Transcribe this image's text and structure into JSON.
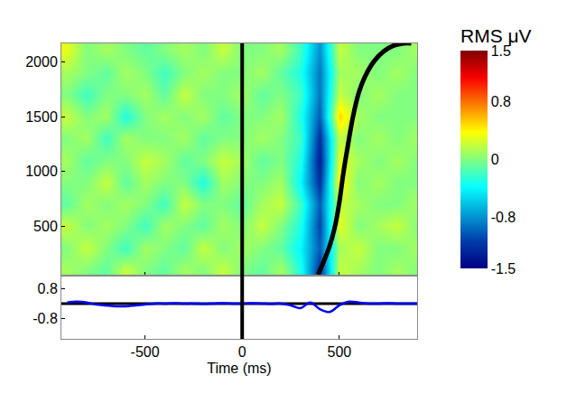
{
  "chart_data": {
    "type": "heatmap",
    "x_title": "Time (ms)",
    "xlim": [
      -930,
      900
    ],
    "xticks": [
      -500,
      0,
      500
    ],
    "ylim": [
      50,
      2170
    ],
    "yticks": [
      500,
      1000,
      1500,
      2000
    ],
    "x": [
      -900,
      -800,
      -700,
      -600,
      -500,
      -400,
      -300,
      -200,
      -100,
      0,
      100,
      200,
      300,
      400,
      500,
      600,
      700,
      800,
      900
    ],
    "y": [
      100,
      300,
      500,
      700,
      900,
      1100,
      1300,
      1500,
      1700,
      1900,
      2100
    ],
    "z": [
      [
        0.1,
        0,
        -0.1,
        0.2,
        0,
        -0.1,
        0.1,
        0,
        0.2,
        0,
        -0.1,
        0.1,
        -0.3,
        -1.2,
        0.2,
        0.1,
        0,
        0.1,
        0
      ],
      [
        0,
        0.2,
        0,
        -0.2,
        0.1,
        0,
        -0.1,
        0.2,
        0,
        0.1,
        0,
        -0.1,
        -0.4,
        -1.0,
        0.1,
        0.2,
        0,
        0,
        0.1
      ],
      [
        0.2,
        0,
        0.1,
        0,
        -0.2,
        0.1,
        0,
        -0.1,
        0.1,
        0,
        0.2,
        0,
        -0.3,
        -1.1,
        0.3,
        0,
        0.1,
        0.2,
        0
      ],
      [
        -0.1,
        0.1,
        0,
        0.1,
        0,
        -0.2,
        0.2,
        0,
        0,
        -0.1,
        0.1,
        0.2,
        -0.2,
        -1.0,
        0.2,
        0.1,
        0,
        0,
        0.1
      ],
      [
        0,
        0,
        0.2,
        -0.1,
        0.1,
        0,
        0,
        -0.3,
        0.1,
        0,
        0,
        0.1,
        -0.4,
        -1.2,
        0.4,
        0,
        0.1,
        0,
        0
      ],
      [
        0.1,
        -0.1,
        0,
        0,
        0.2,
        0.1,
        -0.1,
        0,
        0.2,
        0.1,
        -0.1,
        0,
        -0.3,
        -1.3,
        0.3,
        0.1,
        0,
        0.1,
        0
      ],
      [
        0,
        0.1,
        -0.2,
        0.1,
        0,
        0,
        0.1,
        -0.1,
        0,
        0,
        0.1,
        0,
        -0.2,
        -1.2,
        0.2,
        0,
        0.1,
        0,
        0.1
      ],
      [
        0.2,
        0,
        0.1,
        -0.3,
        0,
        0.1,
        0,
        0.1,
        -0.1,
        0,
        0,
        0.1,
        -0.3,
        -1.0,
        0.5,
        0.1,
        0,
        0,
        0
      ],
      [
        0,
        -0.2,
        0,
        0,
        0.1,
        -0.1,
        0.2,
        0,
        0,
        0.1,
        -0.1,
        0,
        -0.2,
        -0.9,
        0.2,
        0,
        0.1,
        0,
        0
      ],
      [
        0.1,
        0,
        -0.1,
        0.1,
        0,
        -0.2,
        0,
        0.1,
        0,
        0,
        0.1,
        -0.1,
        -0.3,
        -0.9,
        0.1,
        0.1,
        0,
        0.1,
        0
      ],
      [
        0.3,
        0,
        0.1,
        0,
        -0.1,
        0,
        0.1,
        0,
        0.2,
        0,
        0,
        0.1,
        -0.2,
        -0.8,
        0.2,
        0,
        0,
        0,
        0.1
      ]
    ],
    "colorbar_title": "RMS μV",
    "zlim": [
      -1.5,
      1.5
    ],
    "zticks": [
      -1.5,
      -0.8,
      0,
      0.8,
      1.5
    ],
    "event_time": 0,
    "curve": {
      "color": "#000000",
      "x": [
        390,
        420,
        450,
        480,
        500,
        520,
        545,
        570,
        600,
        630,
        680,
        730,
        780,
        830,
        870
      ],
      "y": [
        60,
        180,
        320,
        520,
        720,
        980,
        1250,
        1500,
        1720,
        1860,
        2010,
        2100,
        2150,
        2170,
        2170
      ]
    },
    "erp": {
      "color": "#0000ff",
      "ylim": [
        -1.9,
        1.5
      ],
      "yticks": [
        -0.8,
        0.8
      ],
      "baseline": 0,
      "x": [
        -900,
        -850,
        -800,
        -750,
        -700,
        -650,
        -600,
        -550,
        -500,
        -450,
        -400,
        -350,
        -300,
        -250,
        -200,
        -150,
        -100,
        -50,
        0,
        50,
        100,
        150,
        200,
        250,
        300,
        350,
        400,
        450,
        500,
        550,
        600,
        650,
        700,
        750,
        800,
        850,
        900
      ],
      "values": [
        0.05,
        0.1,
        0.05,
        -0.05,
        -0.1,
        -0.15,
        -0.15,
        -0.1,
        -0.05,
        0,
        0,
        0.02,
        0,
        0,
        -0.02,
        0,
        0.02,
        0,
        0,
        0.02,
        0,
        -0.02,
        0,
        -0.1,
        -0.25,
        0.05,
        -0.3,
        -0.45,
        -0.1,
        0.1,
        0.05,
        0,
        0,
        0.02,
        0,
        0,
        0
      ]
    }
  }
}
